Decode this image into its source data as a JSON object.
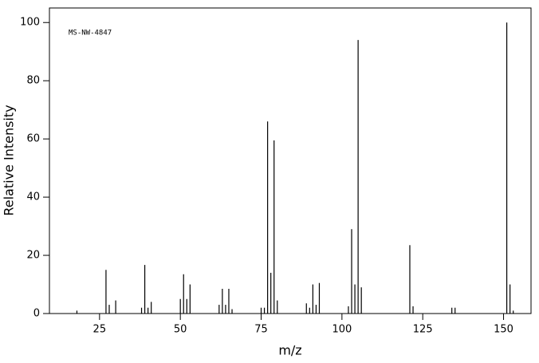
{
  "chart_data": {
    "type": "stem",
    "annotation": "MS-NW-4847",
    "x_label": "m/z",
    "y_label": "Relative Intensity",
    "color": "#000000",
    "x": [
      18,
      27,
      28,
      30,
      38,
      39,
      40,
      41,
      50,
      51,
      52,
      53,
      62,
      63,
      64,
      65,
      66,
      75,
      76,
      77,
      78,
      79,
      80,
      89,
      90,
      91,
      92,
      93,
      102,
      103,
      104,
      105,
      106,
      121,
      122,
      134,
      135,
      151,
      152,
      153
    ],
    "values": [
      1,
      15,
      3,
      4.5,
      2,
      16.7,
      2,
      4,
      5,
      13.5,
      5,
      10,
      3,
      8.5,
      3,
      8.5,
      1.5,
      2,
      2,
      66,
      14,
      59.5,
      4.5,
      3.5,
      2,
      10,
      3,
      10.5,
      2.5,
      29,
      10,
      94,
      9,
      23.5,
      2.5,
      2,
      2,
      100,
      10,
      1
    ],
    "xlim": [
      9.5,
      158.5
    ],
    "ylim": [
      0,
      105
    ],
    "xticks": [
      25,
      50,
      75,
      100,
      125,
      150
    ],
    "yticks": [
      0,
      20,
      40,
      60,
      80,
      100
    ]
  }
}
